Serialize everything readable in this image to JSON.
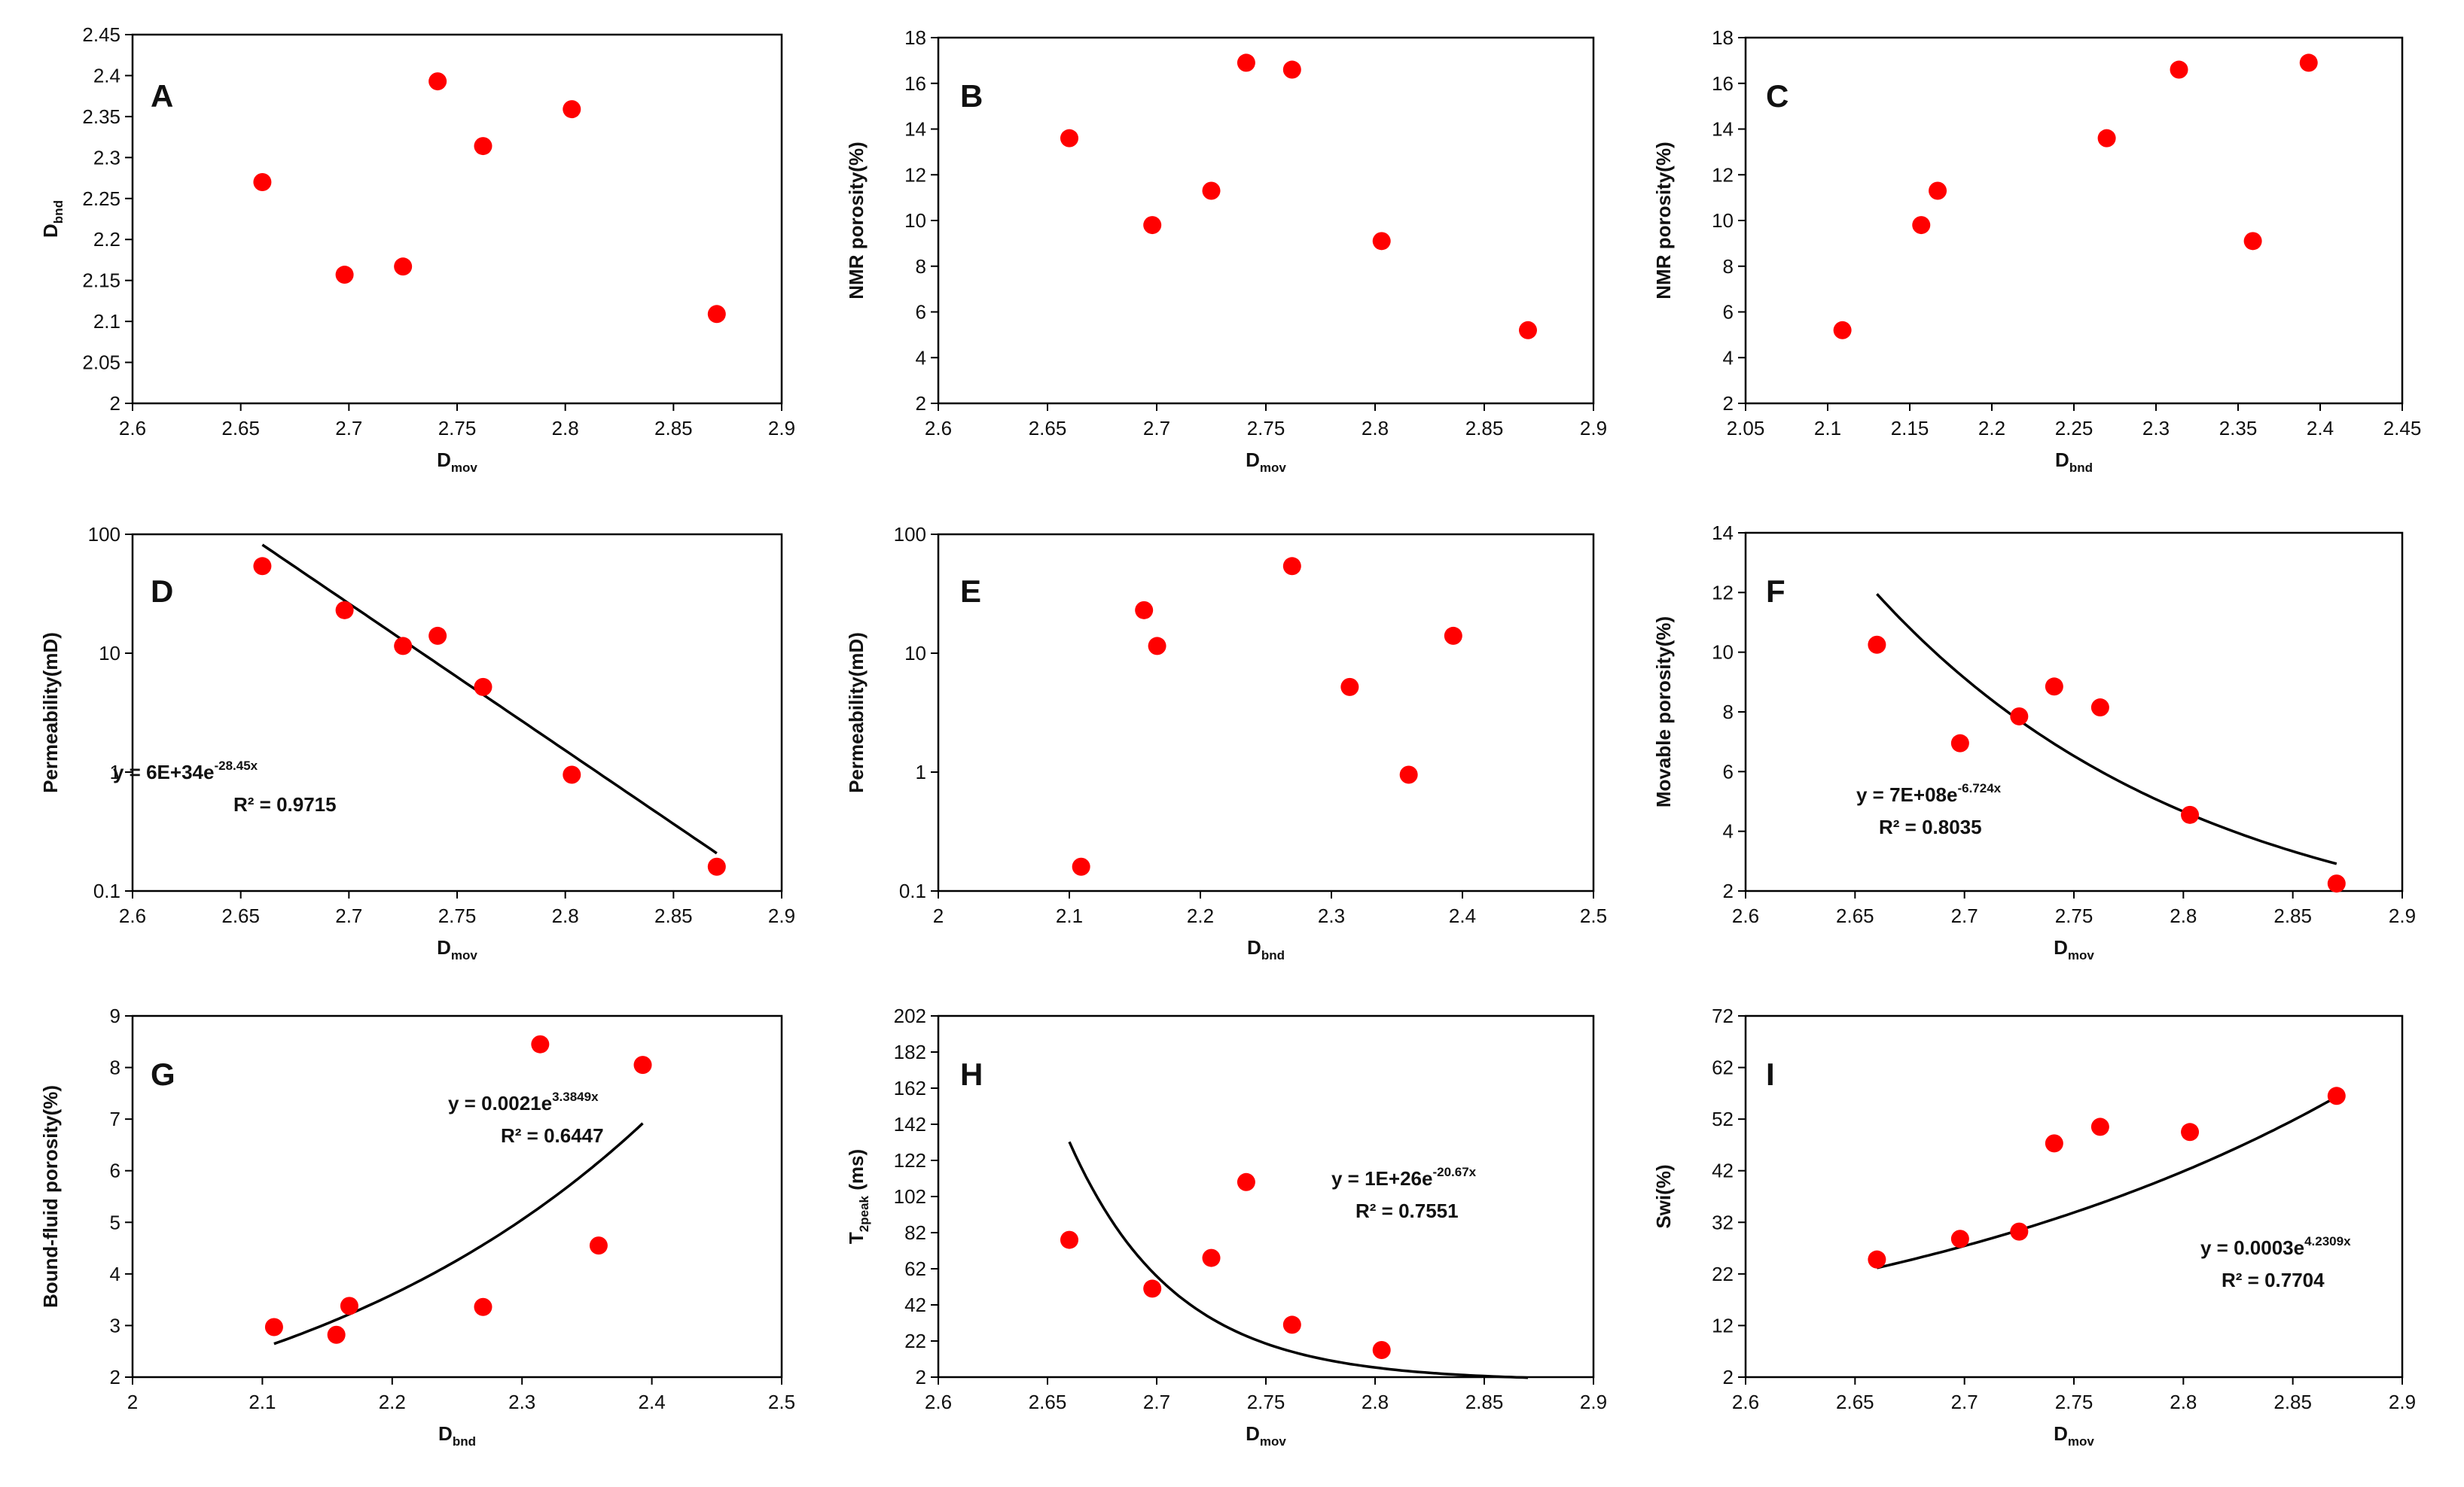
{
  "colors": {
    "point": "#ff0000",
    "fit_line": "#000000",
    "axis": "#000000",
    "background": "#ffffff"
  },
  "chart_data": [
    {
      "id": "A",
      "type": "scatter",
      "panel_letter": "A",
      "xlabel": {
        "main": "D",
        "sub": "mov"
      },
      "ylabel": {
        "main": "D",
        "sub": "bnd"
      },
      "xlim": [
        2.6,
        2.9
      ],
      "ylim": [
        2.0,
        2.45
      ],
      "yscale": "linear",
      "xticks": [
        "2.6",
        "2.65",
        "2.7",
        "2.75",
        "2.8",
        "2.85",
        "2.9"
      ],
      "yticks": [
        "2",
        "2.05",
        "2.1",
        "2.15",
        "2.2",
        "2.25",
        "2.3",
        "2.35",
        "2.4",
        "2.45"
      ],
      "points": [
        [
          2.66,
          2.27
        ],
        [
          2.698,
          2.157
        ],
        [
          2.725,
          2.167
        ],
        [
          2.741,
          2.393
        ],
        [
          2.762,
          2.314
        ],
        [
          2.803,
          2.359
        ],
        [
          2.87,
          2.109
        ]
      ]
    },
    {
      "id": "B",
      "type": "scatter",
      "panel_letter": "B",
      "xlabel": {
        "main": "D",
        "sub": "mov"
      },
      "ylabel": {
        "main": "NMR porosity(%)",
        "sub": ""
      },
      "xlim": [
        2.6,
        2.9
      ],
      "ylim": [
        2,
        18
      ],
      "yscale": "linear",
      "xticks": [
        "2.6",
        "2.65",
        "2.7",
        "2.75",
        "2.8",
        "2.85",
        "2.9"
      ],
      "yticks": [
        "2",
        "4",
        "6",
        "8",
        "10",
        "12",
        "14",
        "16",
        "18"
      ],
      "points": [
        [
          2.66,
          13.6
        ],
        [
          2.698,
          9.8
        ],
        [
          2.725,
          11.3
        ],
        [
          2.741,
          16.9
        ],
        [
          2.762,
          16.6
        ],
        [
          2.803,
          9.1
        ],
        [
          2.87,
          5.2
        ]
      ]
    },
    {
      "id": "C",
      "type": "scatter",
      "panel_letter": "C",
      "xlabel": {
        "main": "D",
        "sub": "bnd"
      },
      "ylabel": {
        "main": "NMR porosity(%)",
        "sub": ""
      },
      "xlim": [
        2.05,
        2.45
      ],
      "ylim": [
        2,
        18
      ],
      "yscale": "linear",
      "xticks": [
        "2.05",
        "2.1",
        "2.15",
        "2.2",
        "2.25",
        "2.3",
        "2.35",
        "2.4",
        "2.45"
      ],
      "yticks": [
        "2",
        "4",
        "6",
        "8",
        "10",
        "12",
        "14",
        "16",
        "18"
      ],
      "points": [
        [
          2.109,
          5.2
        ],
        [
          2.157,
          9.8
        ],
        [
          2.167,
          11.3
        ],
        [
          2.27,
          13.6
        ],
        [
          2.314,
          16.6
        ],
        [
          2.359,
          9.1
        ],
        [
          2.393,
          16.9
        ]
      ]
    },
    {
      "id": "D",
      "type": "scatter",
      "panel_letter": "D",
      "xlabel": {
        "main": "D",
        "sub": "mov"
      },
      "ylabel": {
        "main": "Permeability(mD)",
        "sub": ""
      },
      "xlim": [
        2.6,
        2.9
      ],
      "ylim": [
        0.1,
        100
      ],
      "yscale": "log",
      "xticks": [
        "2.6",
        "2.65",
        "2.7",
        "2.75",
        "2.8",
        "2.85",
        "2.9"
      ],
      "yticks": [
        "0.1",
        "1",
        "10",
        "100"
      ],
      "points": [
        [
          2.66,
          54
        ],
        [
          2.698,
          23
        ],
        [
          2.725,
          11.5
        ],
        [
          2.741,
          14
        ],
        [
          2.762,
          5.2
        ],
        [
          2.803,
          0.95
        ],
        [
          2.87,
          0.16
        ]
      ],
      "fit": {
        "type": "exp",
        "a": 6e+34,
        "b": -28.45,
        "x_range": [
          2.66,
          2.87
        ]
      },
      "equation": {
        "line1_prefix": "y = 6E+34e",
        "line1_sup": "-28.45x",
        "line2": "R² = 0.9715"
      }
    },
    {
      "id": "E",
      "type": "scatter",
      "panel_letter": "E",
      "xlabel": {
        "main": "D",
        "sub": "bnd"
      },
      "ylabel": {
        "main": "Permeability(mD)",
        "sub": ""
      },
      "xlim": [
        2.0,
        2.5
      ],
      "ylim": [
        0.1,
        100
      ],
      "yscale": "log",
      "xticks": [
        "2",
        "2.1",
        "2.2",
        "2.3",
        "2.4",
        "2.5"
      ],
      "yticks": [
        "0.1",
        "1",
        "10",
        "100"
      ],
      "points": [
        [
          2.109,
          0.16
        ],
        [
          2.157,
          23
        ],
        [
          2.167,
          11.5
        ],
        [
          2.27,
          54
        ],
        [
          2.314,
          5.2
        ],
        [
          2.359,
          0.95
        ],
        [
          2.393,
          14
        ]
      ]
    },
    {
      "id": "F",
      "type": "scatter",
      "panel_letter": "F",
      "xlabel": {
        "main": "D",
        "sub": "mov"
      },
      "ylabel": {
        "main": "Movable porosity(%)",
        "sub": ""
      },
      "xlim": [
        2.6,
        2.9
      ],
      "ylim": [
        2,
        14
      ],
      "yscale": "linear",
      "xticks": [
        "2.6",
        "2.65",
        "2.7",
        "2.75",
        "2.8",
        "2.85",
        "2.9"
      ],
      "yticks": [
        "2",
        "4",
        "6",
        "8",
        "10",
        "12",
        "14"
      ],
      "points": [
        [
          2.66,
          10.25
        ],
        [
          2.698,
          6.95
        ],
        [
          2.725,
          7.85
        ],
        [
          2.741,
          8.85
        ],
        [
          2.762,
          8.15
        ],
        [
          2.803,
          4.55
        ],
        [
          2.87,
          2.25
        ]
      ],
      "fit": {
        "type": "exp",
        "a": 700000000.0,
        "b": -6.724,
        "x_range": [
          2.66,
          2.87
        ]
      },
      "equation": {
        "line1_prefix": "y = 7E+08e",
        "line1_sup": "-6.724x",
        "line2": "R² = 0.8035"
      }
    },
    {
      "id": "G",
      "type": "scatter",
      "panel_letter": "G",
      "xlabel": {
        "main": "D",
        "sub": "bnd"
      },
      "ylabel": {
        "main": "Bound-fluid porosity(%)",
        "sub": ""
      },
      "xlim": [
        2.0,
        2.5
      ],
      "ylim": [
        2,
        9
      ],
      "yscale": "linear",
      "xticks": [
        "2",
        "2.1",
        "2.2",
        "2.3",
        "2.4",
        "2.5"
      ],
      "yticks": [
        "2",
        "3",
        "4",
        "5",
        "6",
        "7",
        "8",
        "9"
      ],
      "points": [
        [
          2.109,
          2.97
        ],
        [
          2.157,
          2.82
        ],
        [
          2.167,
          3.38
        ],
        [
          2.27,
          3.36
        ],
        [
          2.314,
          8.45
        ],
        [
          2.359,
          4.55
        ],
        [
          2.393,
          8.05
        ]
      ],
      "fit": {
        "type": "exp",
        "a": 0.0021,
        "b": 3.3849,
        "x_range": [
          2.109,
          2.393
        ]
      },
      "equation": {
        "line1_prefix": "y = 0.0021e",
        "line1_sup": "3.3849x",
        "line2": "R² = 0.6447"
      }
    },
    {
      "id": "H",
      "type": "scatter",
      "panel_letter": "H",
      "xlabel": {
        "main": "D",
        "sub": "mov"
      },
      "ylabel": {
        "main": "T",
        "sub": "2peak",
        "suffix": " (ms)"
      },
      "xlim": [
        2.6,
        2.9
      ],
      "ylim": [
        2,
        202
      ],
      "yscale": "linear",
      "xticks": [
        "2.6",
        "2.65",
        "2.7",
        "2.75",
        "2.8",
        "2.85",
        "2.9"
      ],
      "yticks": [
        "2",
        "22",
        "42",
        "62",
        "82",
        "102",
        "122",
        "142",
        "162",
        "182",
        "202"
      ],
      "points": [
        [
          2.66,
          78
        ],
        [
          2.698,
          51
        ],
        [
          2.725,
          68
        ],
        [
          2.741,
          110
        ],
        [
          2.762,
          31
        ],
        [
          2.803,
          17
        ]
      ],
      "fit": {
        "type": "exp",
        "a": 1e+26,
        "b": -20.67,
        "x_range": [
          2.66,
          2.87
        ]
      },
      "equation": {
        "line1_prefix": "y = 1E+26e",
        "line1_sup": "-20.67x",
        "line2": "R² = 0.7551"
      }
    },
    {
      "id": "I",
      "type": "scatter",
      "panel_letter": "I",
      "xlabel": {
        "main": "D",
        "sub": "mov"
      },
      "ylabel": {
        "main": "Swi(%)",
        "sub": ""
      },
      "xlim": [
        2.6,
        2.9
      ],
      "ylim": [
        2,
        72
      ],
      "yscale": "linear",
      "xticks": [
        "2.6",
        "2.65",
        "2.7",
        "2.75",
        "2.8",
        "2.85",
        "2.9"
      ],
      "yticks": [
        "2",
        "12",
        "22",
        "32",
        "42",
        "52",
        "62",
        "72"
      ],
      "points": [
        [
          2.66,
          24.8
        ],
        [
          2.698,
          28.8
        ],
        [
          2.725,
          30.2
        ],
        [
          2.741,
          47.3
        ],
        [
          2.762,
          50.5
        ],
        [
          2.803,
          49.5
        ],
        [
          2.87,
          56.5
        ]
      ],
      "fit": {
        "type": "exp",
        "a": 0.0003,
        "b": 4.2309,
        "x_range": [
          2.66,
          2.87
        ]
      },
      "equation": {
        "line1_prefix": "y = 0.0003e",
        "line1_sup": "4.2309x",
        "line2": "R² = 0.7704"
      }
    }
  ]
}
